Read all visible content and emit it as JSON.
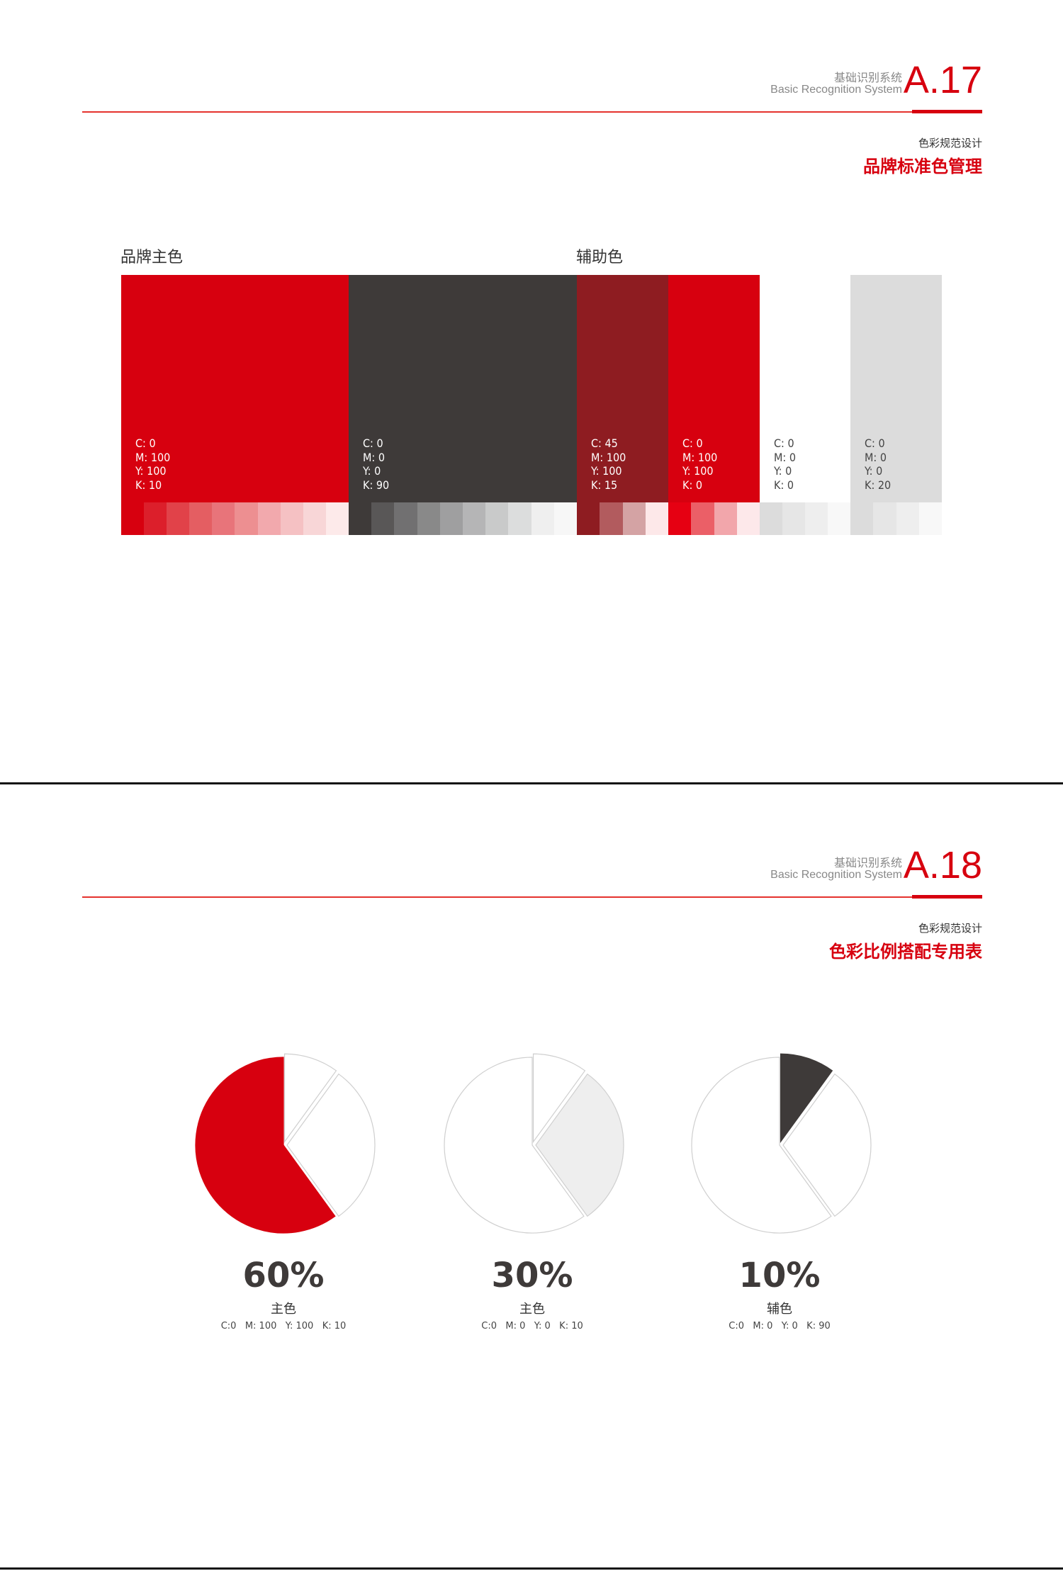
{
  "page1": {
    "header": {
      "cn": "基础识别系统",
      "en": "Basic Recognition System",
      "number": "A.17"
    },
    "subtitle": "色彩规范设计",
    "title": "品牌标准色管理",
    "primary_label": "品牌主色",
    "secondary_label": "辅助色",
    "swatches": [
      {
        "color": "#d7000f",
        "text_color": "#ffffff",
        "c": "C:  0",
        "m": "M: 100",
        "y": "Y:  100",
        "k": "K:  10",
        "tints": [
          "#d7000f",
          "#dc1f2b",
          "#e14249",
          "#e45e62",
          "#e8747a",
          "#ed8f91",
          "#f2a9ad",
          "#f5c1c3",
          "#f8d6d7",
          "#fdeaea"
        ]
      },
      {
        "color": "#3e3a39",
        "text_color": "#ffffff",
        "c": "C:  0",
        "m": "M: 0",
        "y": "Y:  0",
        "k": "K:  90",
        "tints": [
          "#3e3a39",
          "#595757",
          "#717071",
          "#898989",
          "#9f9fa0",
          "#b5b5b6",
          "#c9caca",
          "#dcdddd",
          "#efefef",
          "#f7f7f7"
        ]
      },
      {
        "color": "#8e1c21",
        "text_color": "#ffffff",
        "c": "C:  45",
        "m": "M: 100",
        "y": "Y:  100",
        "k": "K:  15",
        "tints": [
          "#8e1c21",
          "#b25b5e",
          "#d4a3a4",
          "#fde8e9"
        ]
      },
      {
        "color": "#d7000f",
        "text_color": "#ffffff",
        "c": "C:  0",
        "m": "M: 100",
        "y": "Y:  100",
        "k": "K:  0",
        "tints": [
          "#e60012",
          "#eb5f67",
          "#f2a6ab",
          "#fde8ea"
        ]
      },
      {
        "color": "#ffffff",
        "text_color": "#444444",
        "c": "C:  0",
        "m": "M: 0",
        "y": "Y:  0",
        "k": "K:  0",
        "tints": [
          "#dcdcdc",
          "#e6e6e6",
          "#eeeeee",
          "#f8f8f8"
        ]
      },
      {
        "color": "#dcdcdc",
        "text_color": "#444444",
        "c": "C:  0",
        "m": "M: 0",
        "y": "Y:  0",
        "k": "K:  20",
        "tints": [
          "#dcdcdc",
          "#e6e6e6",
          "#eeeeee",
          "#f8f8f8"
        ]
      }
    ]
  },
  "page2": {
    "header": {
      "cn": "基础识别系统",
      "en": "Basic Recognition System",
      "number": "A.18"
    },
    "subtitle": "色彩规范设计",
    "title": "色彩比例搭配专用表",
    "pies": [
      {
        "percent": "60%",
        "label": "主色",
        "cmyk": "C:0   M: 100   Y: 100   K: 10",
        "highlight": 2,
        "fill": "#d7000f"
      },
      {
        "percent": "30%",
        "label": "主色",
        "cmyk": "C:0   M: 0   Y: 0   K: 10",
        "highlight": 1,
        "fill": "#eeeeee"
      },
      {
        "percent": "10%",
        "label": "辅色",
        "cmyk": "C:0   M: 0   Y: 0   K: 90",
        "highlight": 0,
        "fill": "#3e3a39"
      }
    ],
    "slices": [
      10,
      30,
      60
    ]
  }
}
